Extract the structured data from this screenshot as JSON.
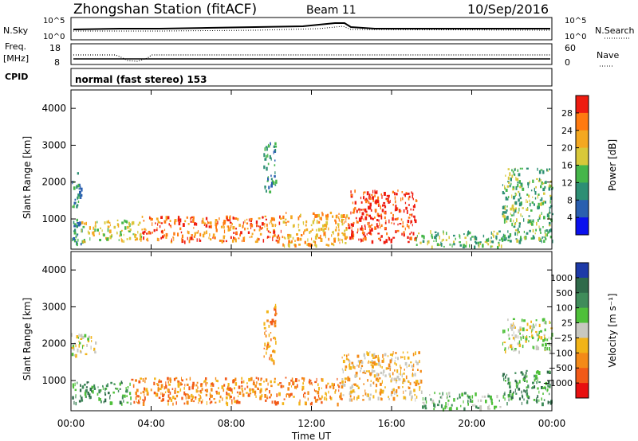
{
  "header": {
    "title": "Zhongshan Station (fitACF)",
    "beam": "Beam 11",
    "date": "10/Sep/2016"
  },
  "noise_panel": {
    "left_label": "N.Sky",
    "right_label": "N.Search",
    "y_top": "10^5",
    "y_bottom": "10^0"
  },
  "freq_panel": {
    "left_label_1": "Freq.",
    "left_label_2": "[MHz]",
    "left_top": "18",
    "left_bottom": "8",
    "right_top": "60",
    "right_bottom": "0",
    "right_label": "Nave"
  },
  "cpid": {
    "label": "CPID",
    "value": "normal (fast stereo) 153"
  },
  "chart_data": [
    {
      "type": "heatmap",
      "title": "",
      "ylabel": "Slant Range [km]",
      "xlabel": "",
      "xlim": [
        0,
        24
      ],
      "ylim": [
        180,
        4500
      ],
      "xticks": [
        "00:00",
        "04:00",
        "08:00",
        "12:00",
        "16:00",
        "20:00",
        "00:00"
      ],
      "yticks": [
        "1000",
        "2000",
        "3000",
        "4000"
      ],
      "colorbar": {
        "label": "Power [dB]",
        "ticks": [
          "4",
          "8",
          "12",
          "16",
          "20",
          "24",
          "28"
        ],
        "colors": [
          "#0a10ee",
          "#2a5fb0",
          "#2d8f74",
          "#45b64a",
          "#d8c83a",
          "#f4a820",
          "#ff7a10",
          "#ee1c10"
        ]
      },
      "echo_regions": [
        {
          "t0": 0.0,
          "t1": 0.5,
          "r0": 300,
          "r1": 2300,
          "level": 2
        },
        {
          "t0": 0.5,
          "t1": 3.5,
          "r0": 400,
          "r1": 1000,
          "level": 4
        },
        {
          "t0": 3.5,
          "t1": 10.5,
          "r0": 400,
          "r1": 1100,
          "level": 6
        },
        {
          "t0": 9.6,
          "t1": 10.2,
          "r0": 1700,
          "r1": 3100,
          "level": 2
        },
        {
          "t0": 10.5,
          "t1": 13.8,
          "r0": 300,
          "r1": 1200,
          "level": 5
        },
        {
          "t0": 13.8,
          "t1": 17.2,
          "r0": 400,
          "r1": 1800,
          "level": 7
        },
        {
          "t0": 17.2,
          "t1": 21.5,
          "r0": 250,
          "r1": 700,
          "level": 3
        },
        {
          "t0": 21.5,
          "t1": 24.0,
          "r0": 400,
          "r1": 2400,
          "level": 3
        }
      ]
    },
    {
      "type": "heatmap",
      "title": "",
      "ylabel": "Slant Range [km]",
      "xlabel": "Time UT",
      "xlim": [
        0,
        24
      ],
      "ylim": [
        180,
        4500
      ],
      "xticks": [
        "00:00",
        "04:00",
        "08:00",
        "12:00",
        "16:00",
        "20:00",
        "00:00"
      ],
      "yticks": [
        "1000",
        "2000",
        "3000",
        "4000"
      ],
      "colorbar": {
        "label": "Velocity [m s⁻¹]",
        "ticks": [
          "1000",
          "500",
          "100",
          "25",
          "−25",
          "−100",
          "−500",
          "−1000"
        ],
        "colors": [
          "#1d3aa8",
          "#2f6a4a",
          "#3f8c5a",
          "#4fc03a",
          "#c8c8c0",
          "#f2b418",
          "#f48a18",
          "#f25a18",
          "#e81010"
        ]
      },
      "echo_regions": [
        {
          "t0": 0.0,
          "t1": 1.2,
          "r0": 1700,
          "r1": 2300,
          "level": 4
        },
        {
          "t0": 0.0,
          "t1": 3.0,
          "r0": 400,
          "r1": 1000,
          "level": 2
        },
        {
          "t0": 3.0,
          "t1": 13.5,
          "r0": 400,
          "r1": 1100,
          "level": 6
        },
        {
          "t0": 9.6,
          "t1": 10.2,
          "r0": 1500,
          "r1": 3100,
          "level": 6
        },
        {
          "t0": 13.5,
          "t1": 17.5,
          "r0": 500,
          "r1": 1800,
          "level": 5
        },
        {
          "t0": 17.5,
          "t1": 21.5,
          "r0": 250,
          "r1": 700,
          "level": 3
        },
        {
          "t0": 21.5,
          "t1": 24.0,
          "r0": 1800,
          "r1": 2700,
          "level": 4
        },
        {
          "t0": 21.5,
          "t1": 24.0,
          "r0": 400,
          "r1": 1300,
          "level": 2
        }
      ]
    }
  ]
}
